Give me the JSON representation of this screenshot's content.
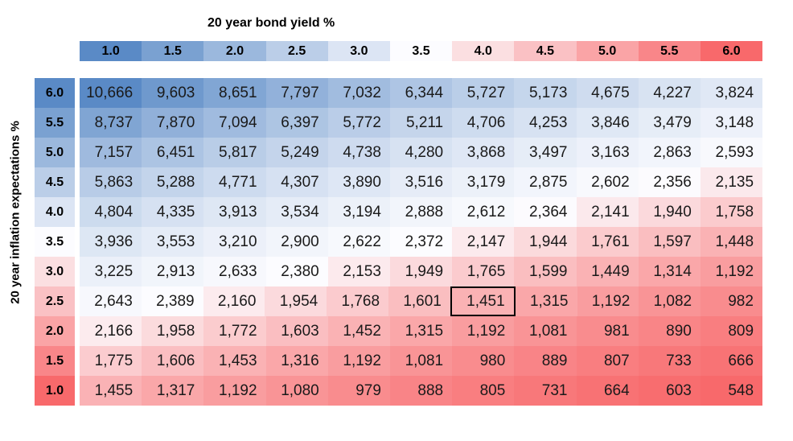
{
  "chart_data": {
    "type": "heatmap",
    "x_axis_title": "20 year bond yield %",
    "y_axis_title": "20 year inflation expectations %",
    "x_categories": [
      "1.0",
      "1.5",
      "2.0",
      "2.5",
      "3.0",
      "3.5",
      "4.0",
      "4.5",
      "5.0",
      "5.5",
      "6.0"
    ],
    "y_categories": [
      "6.0",
      "5.5",
      "5.0",
      "4.5",
      "4.0",
      "3.5",
      "3.0",
      "2.5",
      "2.0",
      "1.5",
      "1.0"
    ],
    "rows": [
      [
        10666,
        9603,
        8651,
        7797,
        7032,
        6344,
        5727,
        5173,
        4675,
        4227,
        3824
      ],
      [
        8737,
        7870,
        7094,
        6397,
        5772,
        5211,
        4706,
        4253,
        3846,
        3479,
        3148
      ],
      [
        7157,
        6451,
        5817,
        5249,
        4738,
        4280,
        3868,
        3497,
        3163,
        2863,
        2593
      ],
      [
        5863,
        5288,
        4771,
        4307,
        3890,
        3516,
        3179,
        2875,
        2602,
        2356,
        2135
      ],
      [
        4804,
        4335,
        3913,
        3534,
        3194,
        2888,
        2612,
        2364,
        2141,
        1940,
        1758
      ],
      [
        3936,
        3553,
        3210,
        2900,
        2622,
        2372,
        2147,
        1944,
        1761,
        1597,
        1448
      ],
      [
        3225,
        2913,
        2633,
        2380,
        2153,
        1949,
        1765,
        1599,
        1449,
        1314,
        1192
      ],
      [
        2643,
        2389,
        2160,
        1954,
        1768,
        1601,
        1451,
        1315,
        1192,
        1082,
        982
      ],
      [
        2166,
        1958,
        1772,
        1603,
        1452,
        1315,
        1192,
        1081,
        981,
        890,
        809
      ],
      [
        1775,
        1606,
        1453,
        1316,
        1192,
        1081,
        980,
        889,
        807,
        733,
        666
      ],
      [
        1455,
        1317,
        1192,
        1080,
        979,
        888,
        805,
        731,
        664,
        603,
        548
      ]
    ],
    "number_format": "thousands-comma",
    "color_scale": {
      "low": "#F8696B",
      "mid": "#FCFCFF",
      "high": "#5A8AC6",
      "midpoint": "median"
    },
    "header_scale": {
      "min": 1.0,
      "mid": 3.5,
      "max": 6.0
    },
    "selected_cell": {
      "row": "2.5",
      "column": "4.0",
      "value": 1451
    },
    "layout": {
      "grid": "on-cells-only",
      "legend": "none"
    }
  }
}
